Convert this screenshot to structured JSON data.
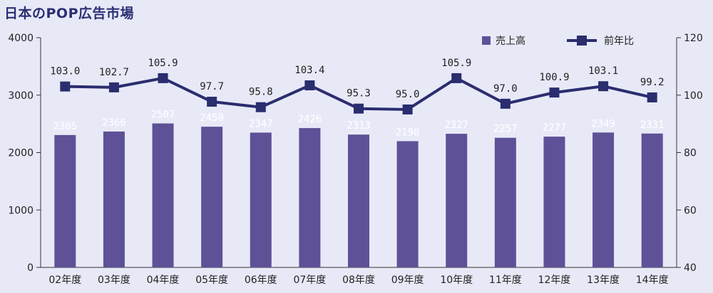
{
  "title": "日本のPOP広告市場",
  "colors": {
    "bar": "#5e5197",
    "line": "#2a2d6e",
    "background": "#e8e9f7",
    "bar_label": "#ffffff",
    "line_label": "#222222"
  },
  "chart_data": {
    "type": "bar",
    "categories": [
      "02年度",
      "03年度",
      "04年度",
      "05年度",
      "06年度",
      "07年度",
      "08年度",
      "09年度",
      "10年度",
      "11年度",
      "12年度",
      "13年度",
      "14年度"
    ],
    "series": [
      {
        "name": "売上高",
        "type": "bar",
        "axis": "left",
        "values": [
          2305,
          2366,
          2507,
          2450,
          2347,
          2426,
          2313,
          2198,
          2327,
          2257,
          2277,
          2349,
          2331
        ],
        "labels": [
          "2305",
          "2366",
          "2507",
          "2450",
          "2347",
          "2426",
          "2313",
          "2198",
          "2327",
          "2257",
          "2277",
          "2349",
          "2331"
        ]
      },
      {
        "name": "前年比",
        "type": "line",
        "axis": "right",
        "values": [
          103.0,
          102.7,
          105.9,
          97.7,
          95.8,
          103.4,
          95.3,
          95.0,
          105.9,
          97.0,
          100.9,
          103.1,
          99.2
        ],
        "labels": [
          "103.0",
          "102.7",
          "105.9",
          "97.7",
          "95.8",
          "103.4",
          "95.3",
          "95.0",
          "105.9",
          "97.0",
          "100.9",
          "103.1",
          "99.2"
        ]
      }
    ],
    "y_left": {
      "ylim": [
        0,
        4000
      ],
      "ticks": [
        "0",
        "1000",
        "2000",
        "3000",
        "4000"
      ]
    },
    "y_right": {
      "ylim": [
        40,
        120
      ],
      "ticks": [
        "40",
        "60",
        "80",
        "100",
        "120"
      ]
    },
    "legend": {
      "position": "top-right",
      "items": [
        "売上高",
        "前年比"
      ]
    },
    "grid": false
  }
}
